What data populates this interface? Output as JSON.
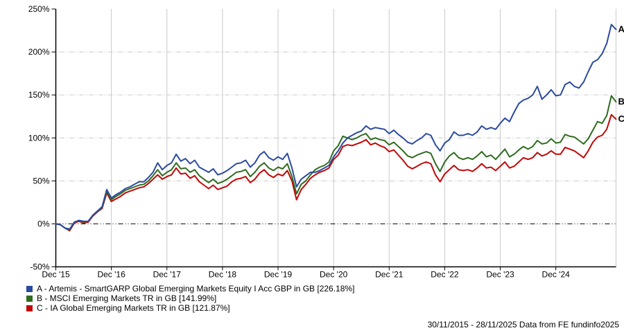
{
  "footer_text": "30/11/2015 - 28/11/2025 Data from FE fundinfo2025",
  "chart_data": {
    "type": "line",
    "title": "",
    "xlabel": "",
    "ylabel": "",
    "x_range": [
      "30/11/2015",
      "28/11/2025"
    ],
    "x_unit": "monthly points from 30/11/2015; second-to-last point is the early-Nov-2025 peak, last point is 28/11/2025",
    "ylim": [
      -50,
      250
    ],
    "grid": "vertical solid grey line each December; horizontal dotted grey lines every 50%; zero line black dash-dot",
    "legend_position": "bottom-left",
    "y_ticks": [
      {
        "value": -50,
        "label": "-50%"
      },
      {
        "value": 0,
        "label": "0%"
      },
      {
        "value": 50,
        "label": "50%"
      },
      {
        "value": 100,
        "label": "100%"
      },
      {
        "value": 150,
        "label": "150%"
      },
      {
        "value": 200,
        "label": "200%"
      },
      {
        "value": 250,
        "label": "250%"
      }
    ],
    "x_ticks": [
      {
        "index": 0,
        "label": "Dec '15"
      },
      {
        "index": 12,
        "label": "Dec '16"
      },
      {
        "index": 24,
        "label": "Dec '17"
      },
      {
        "index": 36,
        "label": "Dec '18"
      },
      {
        "index": 48,
        "label": "Dec '19"
      },
      {
        "index": 60,
        "label": "Dec '20"
      },
      {
        "index": 72,
        "label": "Dec '21"
      },
      {
        "index": 84,
        "label": "Dec '22"
      },
      {
        "index": 96,
        "label": "Dec '23"
      },
      {
        "index": 108,
        "label": "Dec '24"
      }
    ],
    "series": [
      {
        "id": "A",
        "name": "A - Artemis - SmartGARP Global Emerging Markets Equity I Acc GBP in GB [226.18%]",
        "color": "#2a4a9e",
        "final_value_pct": 226.18,
        "values": [
          0,
          -1,
          -5,
          -6,
          2,
          4,
          3,
          3,
          10,
          15,
          20,
          40,
          30,
          34,
          37,
          41,
          43,
          46,
          49,
          49,
          54,
          60,
          71,
          63,
          68,
          71,
          81,
          73,
          76,
          70,
          74,
          66,
          63,
          60,
          64,
          57,
          59,
          62,
          66,
          70,
          71,
          74,
          66,
          71,
          80,
          84,
          77,
          74,
          78,
          75,
          82,
          65,
          43,
          52,
          56,
          60,
          60,
          62,
          65,
          68,
          78,
          85,
          94,
          100,
          103,
          106,
          108,
          114,
          110,
          112,
          111,
          110,
          105,
          109,
          104,
          100,
          95,
          93,
          97,
          100,
          105,
          103,
          92,
          85,
          94,
          98,
          107,
          103,
          103,
          105,
          103,
          107,
          114,
          110,
          112,
          110,
          117,
          123,
          119,
          130,
          140,
          144,
          146,
          150,
          160,
          145,
          150,
          156,
          149,
          150,
          162,
          165,
          160,
          158,
          165,
          177,
          188,
          191,
          198,
          210,
          232,
          226.18
        ]
      },
      {
        "id": "B",
        "name": "B - MSCI Emerging Markets TR in GB [141.99%]",
        "color": "#2e6b1f",
        "final_value_pct": 141.99,
        "values": [
          0,
          -1,
          -5,
          -7,
          2,
          4,
          2,
          3,
          10,
          15,
          19,
          38,
          28,
          32,
          35,
          39,
          41,
          43,
          45,
          46,
          50,
          56,
          63,
          56,
          60,
          63,
          71,
          64,
          65,
          60,
          63,
          56,
          52,
          48,
          52,
          47,
          49,
          52,
          56,
          60,
          61,
          63,
          55,
          60,
          67,
          71,
          65,
          62,
          66,
          64,
          70,
          55,
          35,
          46,
          50,
          57,
          63,
          66,
          68,
          72,
          85,
          91,
          102,
          100,
          98,
          100,
          103,
          105,
          98,
          100,
          98,
          97,
          92,
          95,
          90,
          85,
          79,
          77,
          80,
          82,
          84,
          82,
          70,
          61,
          72,
          79,
          83,
          77,
          75,
          77,
          75,
          79,
          84,
          78,
          80,
          75,
          81,
          87,
          78,
          81,
          86,
          90,
          87,
          90,
          97,
          93,
          94,
          99,
          94,
          95,
          104,
          102,
          101,
          97,
          93,
          99,
          109,
          119,
          117,
          126,
          149,
          141.99
        ]
      },
      {
        "id": "C",
        "name": "C - IA Global Emerging Markets TR in GB [121.87%]",
        "color": "#c00707",
        "final_value_pct": 121.87,
        "values": [
          0,
          -1,
          -5,
          -8,
          1,
          3,
          1,
          2,
          9,
          14,
          18,
          36,
          26,
          29,
          32,
          36,
          38,
          40,
          42,
          43,
          47,
          52,
          57,
          52,
          55,
          57,
          65,
          58,
          59,
          53,
          56,
          49,
          45,
          41,
          45,
          40,
          42,
          44,
          49,
          52,
          53,
          55,
          48,
          52,
          59,
          63,
          57,
          54,
          58,
          56,
          62,
          50,
          28,
          40,
          46,
          53,
          57,
          60,
          62,
          65,
          75,
          80,
          90,
          92,
          91,
          93,
          95,
          98,
          92,
          94,
          91,
          89,
          84,
          86,
          80,
          74,
          67,
          64,
          67,
          70,
          72,
          70,
          57,
          49,
          58,
          63,
          68,
          63,
          62,
          63,
          61,
          65,
          70,
          65,
          66,
          62,
          67,
          72,
          65,
          67,
          72,
          77,
          75,
          77,
          83,
          79,
          81,
          85,
          81,
          81,
          89,
          87,
          85,
          81,
          77,
          85,
          95,
          101,
          103,
          110,
          127,
          121.87
        ]
      }
    ]
  }
}
